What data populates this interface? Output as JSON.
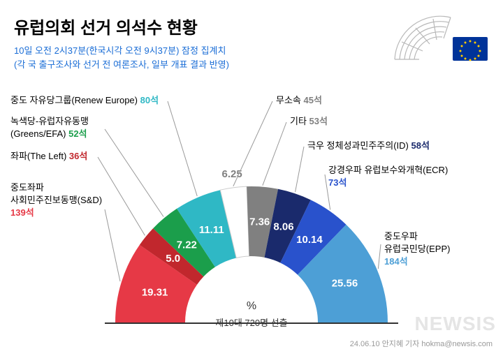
{
  "header": {
    "title": "유럽의회 선거 의석수 현황",
    "subtitle_line1": "10일 오전 2시37분(한국시각 오전 9시37분) 잠정 집계치",
    "subtitle_line2": "(각 국 출구조사와 선거 전 여론조사, 일부 개표 결과 반영)"
  },
  "chart": {
    "type": "semi-donut",
    "center_label": "%",
    "center_sublabel": "제10대 720명 선출",
    "total_seats": 720,
    "colors": {
      "background": "#ffffff",
      "baseline": "#333333"
    },
    "groups": [
      {
        "key": "sd",
        "name_line1": "중도좌파",
        "name_line2": "사회민주진보동맹(S&D)",
        "seats": 139,
        "seats_label": "139석",
        "percent": 19.31,
        "percent_label": "19.31",
        "color": "#e63946",
        "label_color": "#e63946"
      },
      {
        "key": "left",
        "name_line1": "좌파(The Left)",
        "name_line2": "",
        "seats": 36,
        "seats_label": "36석",
        "percent": 5.0,
        "percent_label": "5.0",
        "color": "#c1272d",
        "label_color": "#c1272d"
      },
      {
        "key": "greens",
        "name_line1": "녹색당-유럽자유동맹",
        "name_line2": "(Greens/EFA)",
        "seats": 52,
        "seats_label": "52석",
        "percent": 7.22,
        "percent_label": "7.22",
        "color": "#1b9e4b",
        "label_color": "#1b9e4b"
      },
      {
        "key": "renew",
        "name_line1": "중도 자유당그룹(Renew Europe)",
        "name_line2": "",
        "seats": 80,
        "seats_label": "80석",
        "percent": 11.11,
        "percent_label": "11.11",
        "color": "#2fb8c5",
        "label_color": "#2fb8c5"
      },
      {
        "key": "ni",
        "name_line1": "무소속",
        "name_line2": "",
        "seats": 45,
        "seats_label": "45석",
        "percent": 6.25,
        "percent_label": "6.25",
        "color": "#ffffff",
        "label_color": "#808080",
        "stroke": "#cccccc"
      },
      {
        "key": "other",
        "name_line1": "기타",
        "name_line2": "",
        "seats": 53,
        "seats_label": "53석",
        "percent": 7.36,
        "percent_label": "7.36",
        "color": "#808080",
        "label_color": "#808080"
      },
      {
        "key": "id",
        "name_line1": "극우 정체성과민주주의(ID)",
        "name_line2": "",
        "seats": 58,
        "seats_label": "58석",
        "percent": 8.06,
        "percent_label": "8.06",
        "color": "#1a2a6c",
        "label_color": "#1a2a6c"
      },
      {
        "key": "ecr",
        "name_line1": "강경우파 유럽보수와개혁(ECR)",
        "name_line2": "",
        "seats": 73,
        "seats_label": "73석",
        "percent": 10.14,
        "percent_label": "10.14",
        "color": "#2952cc",
        "label_color": "#2952cc"
      },
      {
        "key": "epp",
        "name_line1": "중도우파",
        "name_line2": "유럽국민당(EPP)",
        "seats": 184,
        "seats_label": "184석",
        "percent": 25.56,
        "percent_label": "25.56",
        "color": "#4d9fd6",
        "label_color": "#4d9fd6"
      }
    ]
  },
  "watermark": "NEWSIS",
  "credit": "24.06.10 안지혜 기자 hokma@newsis.com"
}
